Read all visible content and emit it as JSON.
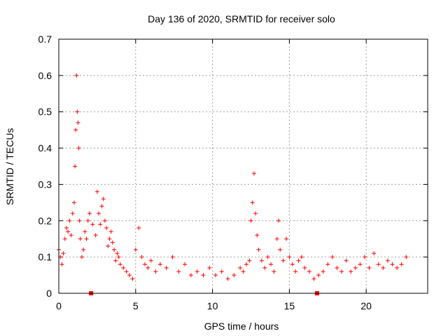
{
  "chart_data": {
    "type": "scatter",
    "title": "Day 136 of 2020, SRMTID for receiver solo",
    "xlabel": "GPS time / hours",
    "ylabel": "SRMTID / TECUs",
    "xlim": [
      0,
      24
    ],
    "ylim": [
      0,
      0.7
    ],
    "xticks": [
      0,
      5,
      10,
      15,
      20
    ],
    "yticks": [
      0,
      0.1,
      0.2,
      0.3,
      0.4,
      0.5,
      0.6,
      0.7
    ],
    "xtick_labels": [
      "0",
      "5",
      "10",
      "15",
      "20"
    ],
    "ytick_labels": [
      "0",
      "0.1",
      "0.2",
      "0.3",
      "0.4",
      "0.5",
      "0.6",
      "0.7"
    ],
    "grid": true,
    "marker": "+",
    "color": "#ff0000",
    "series": [
      {
        "name": "SRMTID",
        "x": [
          0.0,
          0.1,
          0.2,
          0.3,
          0.4,
          0.5,
          0.6,
          0.7,
          0.8,
          0.9,
          1.0,
          1.05,
          1.1,
          1.15,
          1.2,
          1.25,
          1.3,
          1.35,
          1.4,
          1.5,
          1.6,
          1.7,
          1.8,
          1.9,
          2.0,
          2.2,
          2.4,
          2.5,
          2.6,
          2.7,
          2.8,
          2.9,
          3.0,
          3.1,
          3.2,
          3.3,
          3.4,
          3.5,
          3.6,
          3.7,
          3.8,
          3.9,
          4.0,
          4.2,
          4.4,
          4.6,
          4.8,
          5.0,
          5.2,
          5.4,
          5.6,
          5.8,
          6.0,
          6.3,
          6.6,
          7.0,
          7.4,
          7.8,
          8.2,
          8.6,
          9.0,
          9.4,
          9.8,
          10.2,
          10.6,
          11.0,
          11.4,
          11.8,
          12.0,
          12.2,
          12.4,
          12.5,
          12.6,
          12.7,
          12.8,
          12.9,
          13.0,
          13.2,
          13.4,
          13.6,
          13.8,
          14.0,
          14.2,
          14.3,
          14.4,
          14.6,
          14.8,
          15.0,
          15.2,
          15.4,
          15.6,
          15.8,
          16.0,
          16.3,
          16.6,
          16.9,
          17.2,
          17.5,
          17.8,
          18.1,
          18.4,
          18.7,
          19.0,
          19.3,
          19.6,
          19.9,
          20.2,
          20.5,
          20.8,
          21.1,
          21.4,
          21.7,
          22.0,
          22.3,
          22.6
        ],
        "y": [
          0.12,
          0.1,
          0.08,
          0.11,
          0.15,
          0.18,
          0.17,
          0.2,
          0.16,
          0.22,
          0.25,
          0.35,
          0.45,
          0.6,
          0.5,
          0.47,
          0.4,
          0.2,
          0.15,
          0.1,
          0.12,
          0.17,
          0.15,
          0.2,
          0.22,
          0.19,
          0.16,
          0.28,
          0.22,
          0.19,
          0.24,
          0.26,
          0.2,
          0.18,
          0.13,
          0.15,
          0.17,
          0.14,
          0.12,
          0.09,
          0.11,
          0.1,
          0.08,
          0.07,
          0.06,
          0.05,
          0.04,
          0.12,
          0.18,
          0.1,
          0.08,
          0.07,
          0.09,
          0.06,
          0.08,
          0.07,
          0.1,
          0.06,
          0.08,
          0.05,
          0.06,
          0.05,
          0.07,
          0.05,
          0.06,
          0.04,
          0.05,
          0.07,
          0.06,
          0.08,
          0.09,
          0.2,
          0.25,
          0.33,
          0.22,
          0.16,
          0.12,
          0.09,
          0.07,
          0.1,
          0.08,
          0.06,
          0.15,
          0.2,
          0.12,
          0.09,
          0.15,
          0.1,
          0.08,
          0.06,
          0.09,
          0.1,
          0.07,
          0.06,
          0.04,
          0.05,
          0.06,
          0.08,
          0.1,
          0.07,
          0.06,
          0.09,
          0.06,
          0.07,
          0.08,
          0.1,
          0.07,
          0.11,
          0.08,
          0.07,
          0.09,
          0.08,
          0.07,
          0.08,
          0.1
        ]
      }
    ],
    "missing_markers_x": [
      2.1,
      16.8
    ]
  }
}
